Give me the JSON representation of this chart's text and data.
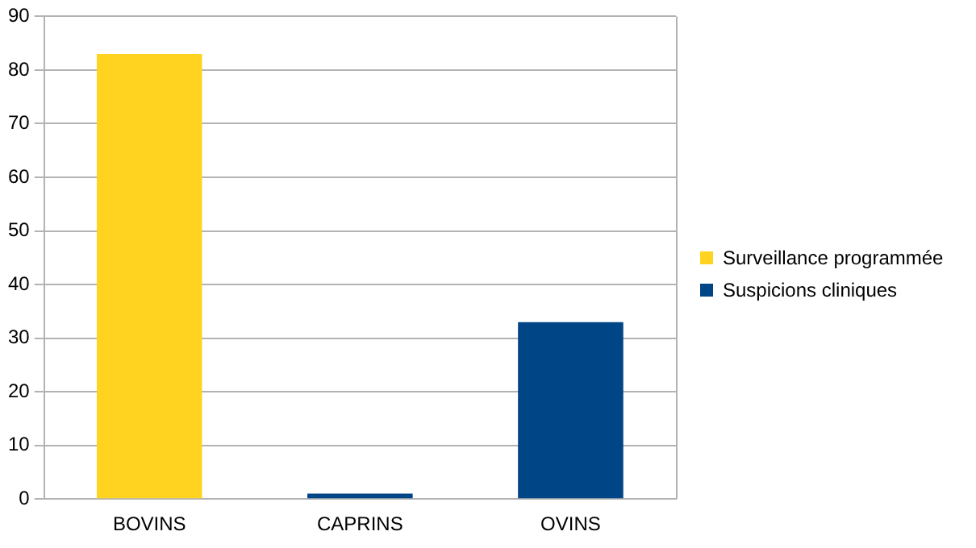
{
  "chart_data": {
    "type": "bar",
    "stacked": true,
    "categories": [
      "BOVINS",
      "CAPRINS",
      "OVINS"
    ],
    "series": [
      {
        "name": "Surveillance programmée",
        "color": "#ffd320",
        "values": [
          83,
          0,
          0
        ]
      },
      {
        "name": "Suspicions cliniques",
        "color": "#004586",
        "values": [
          0,
          1,
          33
        ]
      }
    ],
    "ylim": [
      0,
      90
    ],
    "yticks": [
      0,
      10,
      20,
      30,
      40,
      50,
      60,
      70,
      80,
      90
    ],
    "grid": "y",
    "legend": "right"
  }
}
